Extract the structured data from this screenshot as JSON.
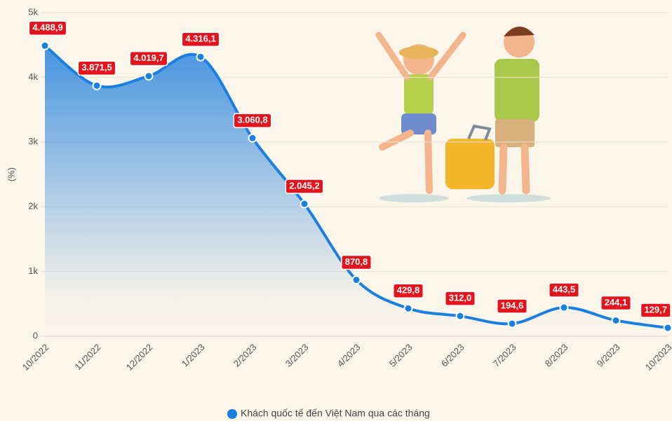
{
  "chart_data": {
    "type": "line",
    "categories": [
      "10/2022",
      "11/2022",
      "12/2022",
      "1/2023",
      "2/2023",
      "3/2023",
      "4/2023",
      "5/2023",
      "6/2023",
      "7/2023",
      "8/2023",
      "9/2023",
      "10/2023"
    ],
    "series": [
      {
        "name": "Khách quốc tế đến Việt Nam qua các tháng",
        "color": "#1a80e0",
        "values": [
          4488.9,
          3871.5,
          4019.7,
          4316.1,
          3060.8,
          2045.2,
          870.8,
          429.8,
          312.0,
          194.6,
          443.5,
          244.1,
          129.7
        ],
        "value_labels": [
          "4.488,9",
          "3.871,5",
          "4.019,7",
          "4.316,1",
          "3.060,8",
          "2.045,2",
          "870,8",
          "429,8",
          "312,0",
          "194,6",
          "443,5",
          "244,1",
          "129,7"
        ]
      }
    ],
    "y_label": "(%)",
    "ylim": [
      0,
      5000
    ],
    "yticks": [
      0,
      {
        "value": 1000,
        "label": "1k"
      },
      {
        "value": 2000,
        "label": "2k"
      },
      {
        "value": 3000,
        "label": "3k"
      },
      {
        "value": 4000,
        "label": "4k"
      },
      {
        "value": 5000,
        "label": "5k"
      }
    ],
    "grid": true,
    "legend": "bottom"
  }
}
